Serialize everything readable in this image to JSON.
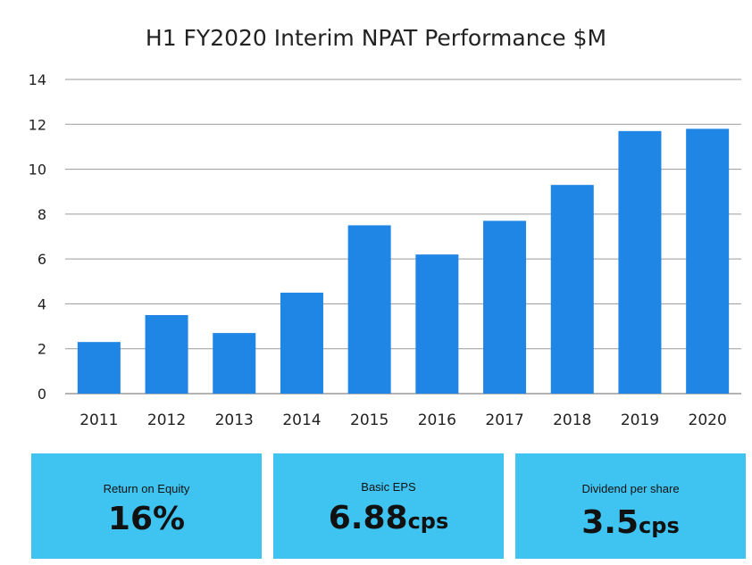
{
  "chart_data": {
    "type": "bar",
    "title": "H1 FY2020 Interim NPAT Performance $M",
    "categories": [
      "2011",
      "2012",
      "2013",
      "2014",
      "2015",
      "2016",
      "2017",
      "2018",
      "2019",
      "2020"
    ],
    "values": [
      2.3,
      3.5,
      2.7,
      4.5,
      7.5,
      6.2,
      7.7,
      9.3,
      11.7,
      11.8
    ],
    "ylim": [
      0,
      14
    ],
    "yticks": [
      0,
      2,
      4,
      6,
      8,
      10,
      12,
      14
    ],
    "grid": true,
    "bar_color": "#1f86e6",
    "grid_color": "#9a9a9a",
    "axis_text_color": "#222222"
  },
  "kpis": [
    {
      "label": "Return on Equity",
      "value": "16%",
      "unit": ""
    },
    {
      "label": "Basic EPS",
      "value": "6.88",
      "unit": "cps"
    },
    {
      "label": "Dividend per share",
      "value": "3.5",
      "unit": "cps"
    }
  ],
  "kpi_color": "#3fc4f1"
}
